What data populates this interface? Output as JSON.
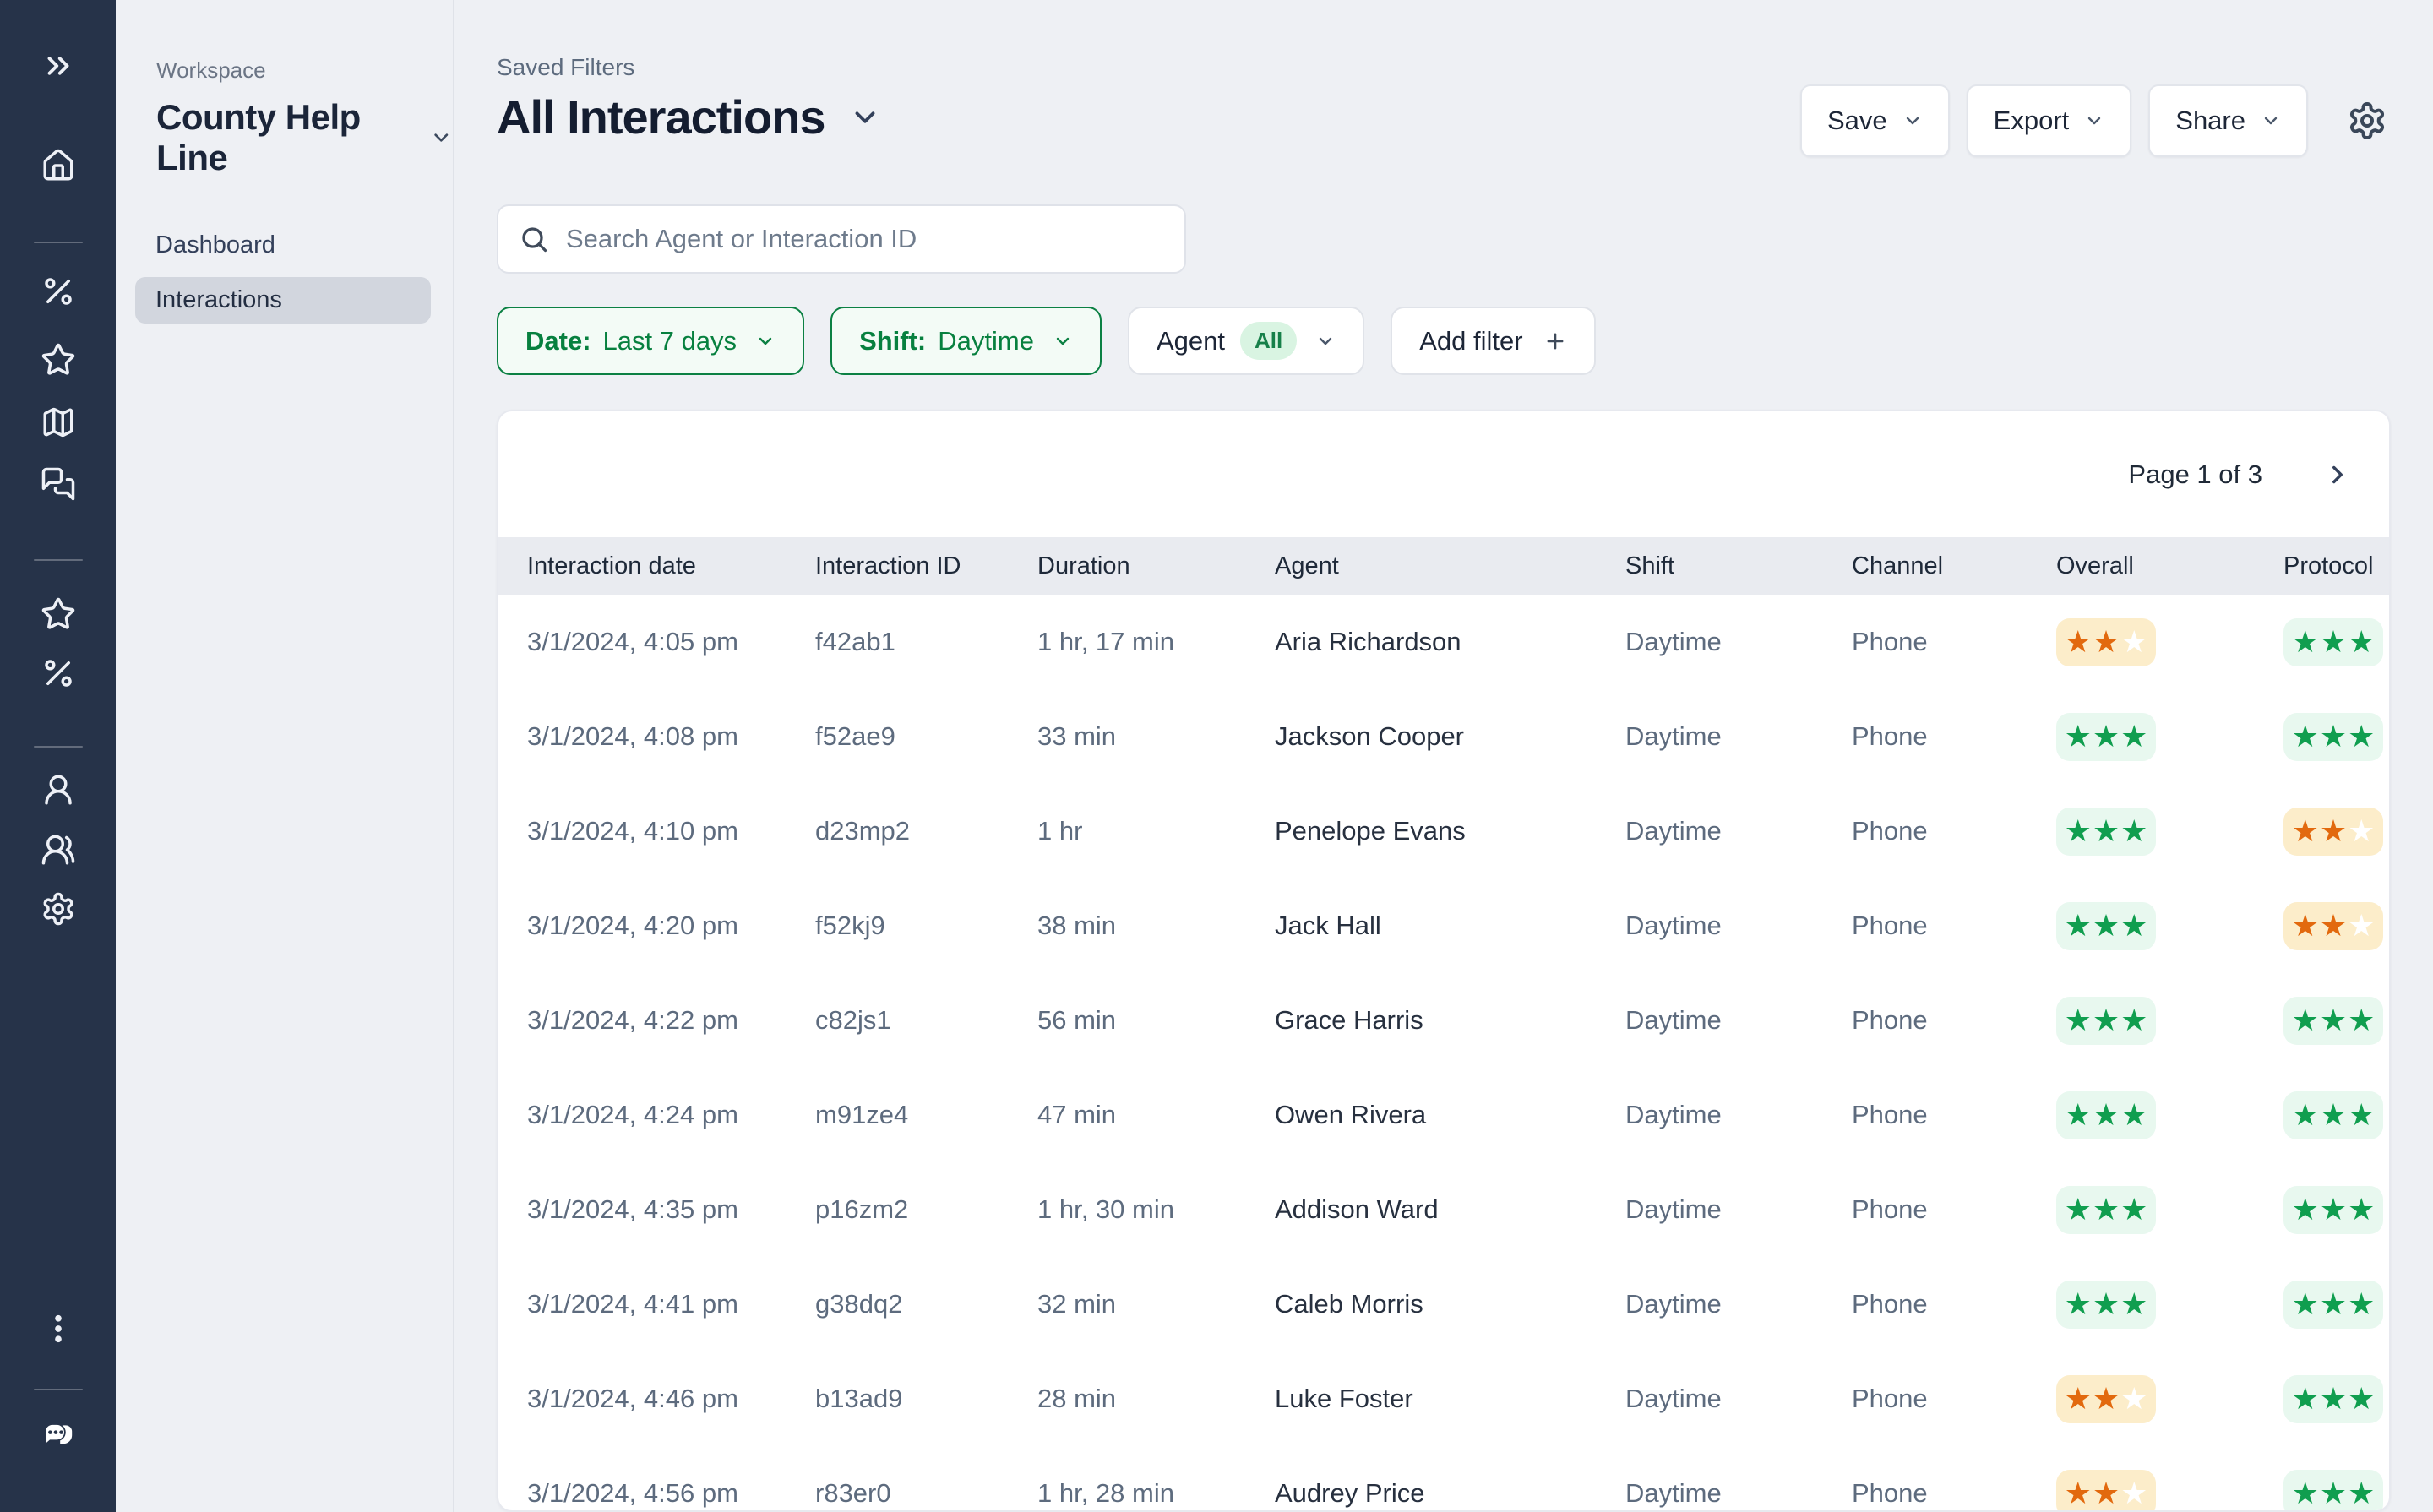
{
  "rail": {
    "icons": [
      {
        "name": "expand-rail"
      },
      {
        "name": "home"
      },
      {
        "name": "percent-metrics"
      },
      {
        "name": "star-favorites"
      },
      {
        "name": "map"
      },
      {
        "name": "chat-interactions"
      },
      {
        "name": "star-saved"
      },
      {
        "name": "percent-scores"
      },
      {
        "name": "user-profile"
      },
      {
        "name": "users-team"
      },
      {
        "name": "settings"
      },
      {
        "name": "kebab-menu"
      },
      {
        "name": "app-logo"
      }
    ]
  },
  "sidebar": {
    "workspace_label": "Workspace",
    "workspace_name": "County Help Line",
    "items": [
      {
        "label": "Dashboard",
        "active": false
      },
      {
        "label": "Interactions",
        "active": true
      }
    ]
  },
  "header": {
    "breadcrumb": "Saved Filters",
    "title": "All Interactions",
    "actions": {
      "save": "Save",
      "export": "Export",
      "share": "Share"
    }
  },
  "filters": {
    "search_placeholder": "Search Agent or Interaction ID",
    "date_chip": {
      "label": "Date:",
      "value": "Last 7 days"
    },
    "shift_chip": {
      "label": "Shift:",
      "value": "Daytime"
    },
    "agent_chip": {
      "label": "Agent",
      "badge": "All"
    },
    "add_filter": {
      "label": "Add filter"
    }
  },
  "table": {
    "page_label": "Page 1 of 3",
    "columns": [
      "Interaction date",
      "Interaction ID",
      "Duration",
      "Agent",
      "Shift",
      "Channel",
      "Overall",
      "Protocol"
    ],
    "colors": {
      "star_green": "#109e4f",
      "star_orange": "#e2690e",
      "badge_green_bg": "#e8f8ef",
      "badge_orange_bg": "#fcedca"
    },
    "rating_max": 3,
    "rows": [
      {
        "date": "3/1/2024, 4:05 pm",
        "id": "f42ab1",
        "duration": "1 hr, 17 min",
        "agent": "Aria Richardson",
        "shift": "Daytime",
        "channel": "Phone",
        "overall": {
          "filled": 2,
          "tone": "orange"
        },
        "protocol": {
          "filled": 3,
          "tone": "green"
        }
      },
      {
        "date": "3/1/2024, 4:08 pm",
        "id": "f52ae9",
        "duration": "33 min",
        "agent": "Jackson Cooper",
        "shift": "Daytime",
        "channel": "Phone",
        "overall": {
          "filled": 3,
          "tone": "green"
        },
        "protocol": {
          "filled": 3,
          "tone": "green"
        }
      },
      {
        "date": "3/1/2024, 4:10 pm",
        "id": "d23mp2",
        "duration": "1 hr",
        "agent": "Penelope Evans",
        "shift": "Daytime",
        "channel": "Phone",
        "overall": {
          "filled": 3,
          "tone": "green"
        },
        "protocol": {
          "filled": 2,
          "tone": "orange"
        }
      },
      {
        "date": "3/1/2024, 4:20 pm",
        "id": "f52kj9",
        "duration": "38 min",
        "agent": "Jack Hall",
        "shift": "Daytime",
        "channel": "Phone",
        "overall": {
          "filled": 3,
          "tone": "green"
        },
        "protocol": {
          "filled": 2,
          "tone": "orange"
        }
      },
      {
        "date": "3/1/2024, 4:22 pm",
        "id": "c82js1",
        "duration": "56 min",
        "agent": "Grace Harris",
        "shift": "Daytime",
        "channel": "Phone",
        "overall": {
          "filled": 3,
          "tone": "green"
        },
        "protocol": {
          "filled": 3,
          "tone": "green"
        }
      },
      {
        "date": "3/1/2024, 4:24 pm",
        "id": "m91ze4",
        "duration": "47 min",
        "agent": "Owen Rivera",
        "shift": "Daytime",
        "channel": "Phone",
        "overall": {
          "filled": 3,
          "tone": "green"
        },
        "protocol": {
          "filled": 3,
          "tone": "green"
        }
      },
      {
        "date": "3/1/2024, 4:35 pm",
        "id": "p16zm2",
        "duration": "1 hr, 30 min",
        "agent": "Addison Ward",
        "shift": "Daytime",
        "channel": "Phone",
        "overall": {
          "filled": 3,
          "tone": "green"
        },
        "protocol": {
          "filled": 3,
          "tone": "green"
        }
      },
      {
        "date": "3/1/2024, 4:41 pm",
        "id": "g38dq2",
        "duration": "32 min",
        "agent": "Caleb Morris",
        "shift": "Daytime",
        "channel": "Phone",
        "overall": {
          "filled": 3,
          "tone": "green"
        },
        "protocol": {
          "filled": 3,
          "tone": "green"
        }
      },
      {
        "date": "3/1/2024, 4:46 pm",
        "id": "b13ad9",
        "duration": "28 min",
        "agent": "Luke Foster",
        "shift": "Daytime",
        "channel": "Phone",
        "overall": {
          "filled": 2,
          "tone": "orange"
        },
        "protocol": {
          "filled": 3,
          "tone": "green"
        }
      },
      {
        "date": "3/1/2024, 4:56 pm",
        "id": "r83er0",
        "duration": "1 hr, 28 min",
        "agent": "Audrey Price",
        "shift": "Daytime",
        "channel": "Phone",
        "overall": {
          "filled": 2,
          "tone": "orange"
        },
        "protocol": {
          "filled": 3,
          "tone": "green"
        }
      }
    ]
  }
}
